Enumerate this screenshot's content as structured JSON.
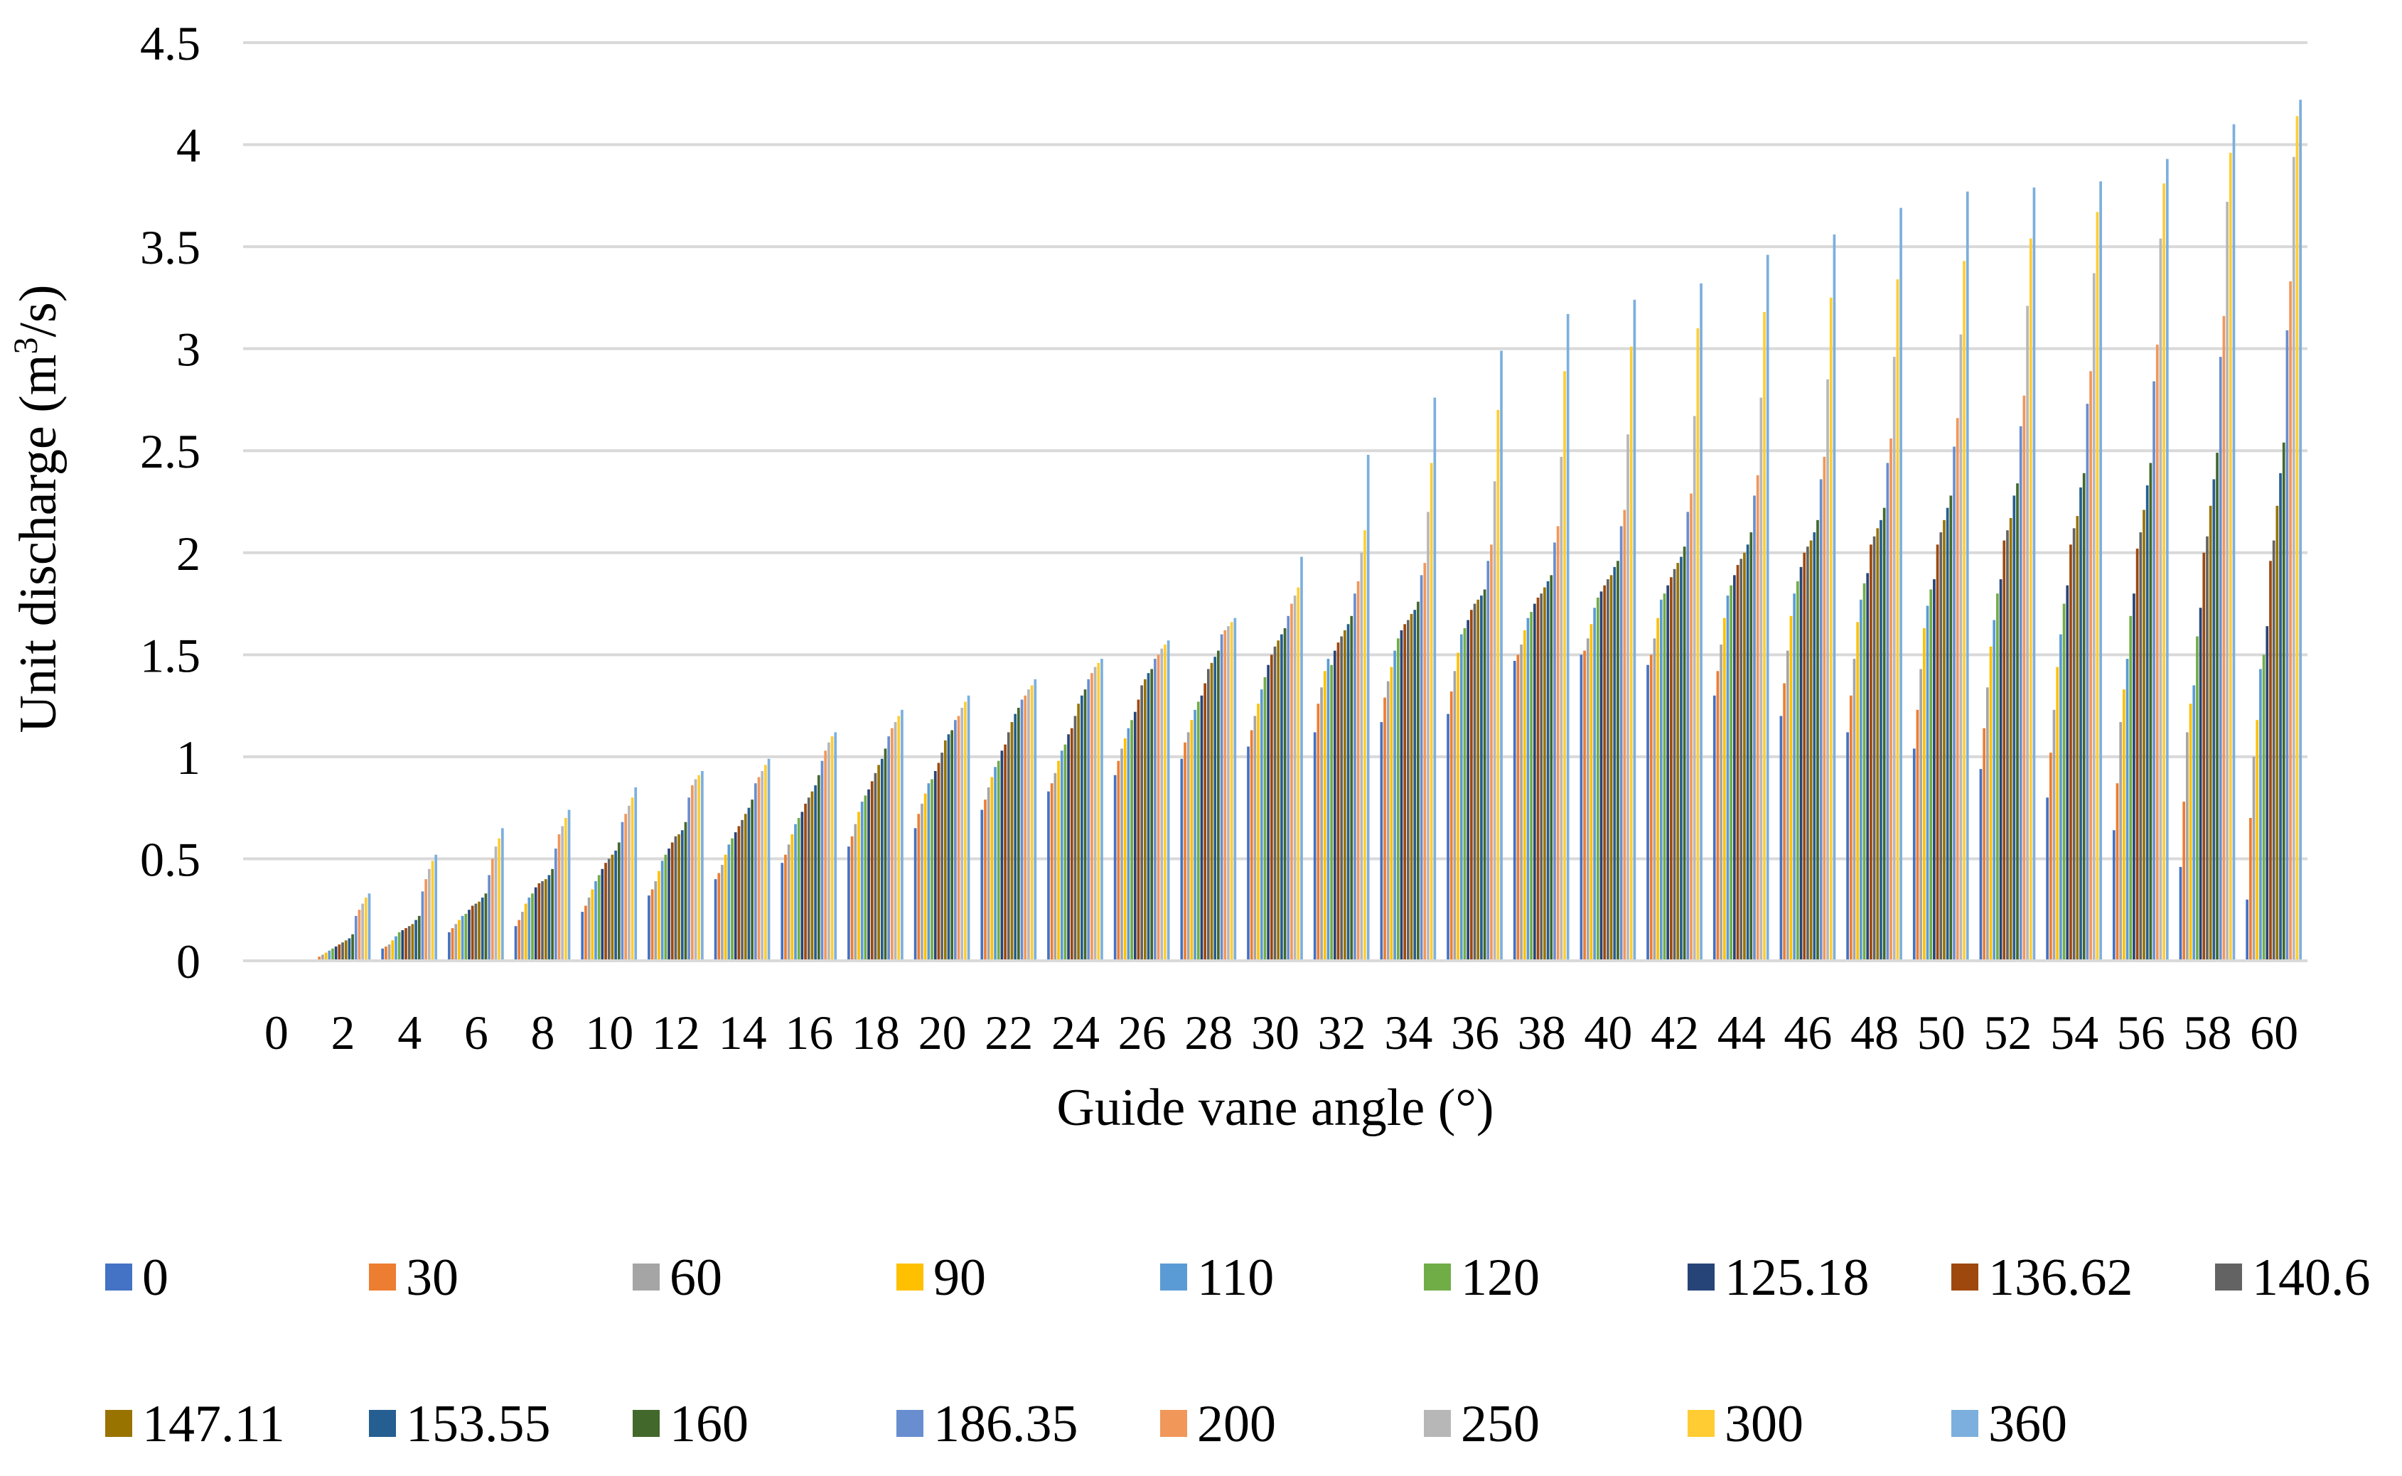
{
  "chart_data": {
    "type": "bar",
    "title": "",
    "xlabel": "Guide vane angle (°)",
    "ylabel_main": "Unit discharge (m",
    "ylabel_sup": "3",
    "ylabel_tail": "/s)",
    "ylim": [
      0,
      4.5
    ],
    "yticks": [
      0,
      0.5,
      1,
      1.5,
      2,
      2.5,
      3,
      3.5,
      4,
      4.5
    ],
    "ytick_labels": [
      "0",
      "0.5",
      "1",
      "1.5",
      "2",
      "2.5",
      "3",
      "3.5",
      "4",
      "4.5"
    ],
    "grid": true,
    "legend_position": "bottom",
    "categories": [
      0,
      2,
      4,
      6,
      8,
      10,
      12,
      14,
      16,
      18,
      20,
      22,
      24,
      26,
      28,
      30,
      32,
      34,
      36,
      38,
      40,
      42,
      44,
      46,
      48,
      50,
      52,
      54,
      56,
      58,
      60
    ],
    "series": [
      {
        "name": "0",
        "color": "#4472C4",
        "values": [
          0,
          0,
          0.06,
          0.14,
          0.17,
          0.24,
          0.32,
          0.4,
          0.48,
          0.56,
          0.65,
          0.74,
          0.83,
          0.91,
          0.99,
          1.05,
          1.12,
          1.17,
          1.21,
          1.47,
          1.5,
          1.45,
          1.3,
          1.2,
          1.12,
          1.04,
          0.94,
          0.8,
          0.64,
          0.46,
          0.3
        ]
      },
      {
        "name": "30",
        "color": "#ED7D31",
        "values": [
          0,
          0.02,
          0.07,
          0.16,
          0.2,
          0.27,
          0.35,
          0.43,
          0.52,
          0.61,
          0.72,
          0.79,
          0.87,
          0.98,
          1.07,
          1.13,
          1.26,
          1.29,
          1.32,
          1.5,
          1.52,
          1.5,
          1.42,
          1.36,
          1.3,
          1.23,
          1.14,
          1.02,
          0.87,
          0.78,
          0.7
        ]
      },
      {
        "name": "60",
        "color": "#A5A5A5",
        "values": [
          0,
          0.03,
          0.08,
          0.18,
          0.24,
          0.31,
          0.39,
          0.47,
          0.57,
          0.67,
          0.77,
          0.85,
          0.92,
          1.04,
          1.12,
          1.2,
          1.34,
          1.37,
          1.42,
          1.55,
          1.58,
          1.58,
          1.55,
          1.52,
          1.48,
          1.43,
          1.34,
          1.23,
          1.17,
          1.12,
          1.0
        ]
      },
      {
        "name": "90",
        "color": "#FFC000",
        "values": [
          0,
          0.04,
          0.1,
          0.2,
          0.28,
          0.35,
          0.44,
          0.52,
          0.62,
          0.73,
          0.82,
          0.9,
          0.98,
          1.09,
          1.18,
          1.26,
          1.42,
          1.44,
          1.51,
          1.62,
          1.65,
          1.68,
          1.68,
          1.69,
          1.66,
          1.63,
          1.54,
          1.44,
          1.33,
          1.26,
          1.18
        ]
      },
      {
        "name": "110",
        "color": "#5B9BD5",
        "values": [
          0,
          0.05,
          0.12,
          0.22,
          0.31,
          0.39,
          0.49,
          0.57,
          0.67,
          0.78,
          0.87,
          0.95,
          1.03,
          1.14,
          1.23,
          1.33,
          1.48,
          1.52,
          1.6,
          1.68,
          1.73,
          1.77,
          1.79,
          1.8,
          1.77,
          1.74,
          1.67,
          1.6,
          1.48,
          1.35,
          1.43
        ]
      },
      {
        "name": "120",
        "color": "#70AD47",
        "values": [
          0,
          0.06,
          0.14,
          0.23,
          0.33,
          0.42,
          0.52,
          0.6,
          0.7,
          0.81,
          0.89,
          0.98,
          1.06,
          1.18,
          1.27,
          1.39,
          1.45,
          1.58,
          1.63,
          1.71,
          1.78,
          1.8,
          1.84,
          1.86,
          1.85,
          1.82,
          1.8,
          1.75,
          1.69,
          1.59,
          1.5
        ]
      },
      {
        "name": "125.18",
        "color": "#264478",
        "values": [
          0,
          0.07,
          0.15,
          0.25,
          0.36,
          0.45,
          0.55,
          0.63,
          0.73,
          0.84,
          0.93,
          1.03,
          1.11,
          1.22,
          1.3,
          1.45,
          1.52,
          1.62,
          1.67,
          1.75,
          1.81,
          1.84,
          1.89,
          1.93,
          1.9,
          1.87,
          1.87,
          1.84,
          1.8,
          1.73,
          1.64
        ]
      },
      {
        "name": "136.62",
        "color": "#9E480E",
        "values": [
          0,
          0.08,
          0.16,
          0.27,
          0.38,
          0.48,
          0.58,
          0.66,
          0.77,
          0.88,
          0.97,
          1.06,
          1.14,
          1.28,
          1.36,
          1.5,
          1.56,
          1.65,
          1.72,
          1.78,
          1.84,
          1.88,
          1.94,
          2.0,
          2.04,
          2.04,
          2.06,
          2.04,
          2.02,
          2.0,
          1.96
        ]
      },
      {
        "name": "140.6",
        "color": "#636363",
        "values": [
          0,
          0.09,
          0.17,
          0.28,
          0.39,
          0.5,
          0.61,
          0.69,
          0.8,
          0.92,
          1.02,
          1.12,
          1.2,
          1.35,
          1.43,
          1.54,
          1.59,
          1.67,
          1.75,
          1.8,
          1.87,
          1.92,
          1.97,
          2.03,
          2.08,
          2.1,
          2.11,
          2.12,
          2.1,
          2.08,
          2.06
        ]
      },
      {
        "name": "147.11",
        "color": "#997300",
        "values": [
          0,
          0.1,
          0.18,
          0.29,
          0.4,
          0.52,
          0.62,
          0.72,
          0.83,
          0.96,
          1.08,
          1.17,
          1.26,
          1.38,
          1.46,
          1.57,
          1.62,
          1.7,
          1.77,
          1.83,
          1.89,
          1.95,
          2.0,
          2.06,
          2.12,
          2.16,
          2.17,
          2.18,
          2.21,
          2.23,
          2.23
        ]
      },
      {
        "name": "153.55",
        "color": "#255E91",
        "values": [
          0,
          0.11,
          0.2,
          0.31,
          0.42,
          0.54,
          0.64,
          0.75,
          0.86,
          0.99,
          1.11,
          1.21,
          1.3,
          1.41,
          1.49,
          1.6,
          1.65,
          1.72,
          1.79,
          1.86,
          1.93,
          1.98,
          2.04,
          2.1,
          2.16,
          2.22,
          2.28,
          2.32,
          2.33,
          2.36,
          2.39
        ]
      },
      {
        "name": "160",
        "color": "#43682B",
        "values": [
          0,
          0.13,
          0.22,
          0.33,
          0.45,
          0.58,
          0.68,
          0.79,
          0.91,
          1.04,
          1.13,
          1.24,
          1.33,
          1.43,
          1.52,
          1.63,
          1.69,
          1.76,
          1.82,
          1.89,
          1.96,
          2.03,
          2.1,
          2.16,
          2.22,
          2.28,
          2.34,
          2.39,
          2.44,
          2.49,
          2.54
        ]
      },
      {
        "name": "186.35",
        "color": "#698ED0",
        "values": [
          0,
          0.22,
          0.34,
          0.42,
          0.55,
          0.68,
          0.8,
          0.87,
          0.98,
          1.1,
          1.18,
          1.28,
          1.38,
          1.48,
          1.6,
          1.69,
          1.8,
          1.89,
          1.96,
          2.05,
          2.13,
          2.2,
          2.28,
          2.36,
          2.44,
          2.52,
          2.62,
          2.73,
          2.84,
          2.96,
          3.09
        ]
      },
      {
        "name": "200",
        "color": "#F1975A",
        "values": [
          0,
          0.25,
          0.4,
          0.5,
          0.62,
          0.72,
          0.86,
          0.9,
          1.03,
          1.14,
          1.2,
          1.3,
          1.41,
          1.5,
          1.62,
          1.75,
          1.86,
          1.95,
          2.04,
          2.13,
          2.21,
          2.29,
          2.38,
          2.47,
          2.56,
          2.66,
          2.77,
          2.89,
          3.02,
          3.16,
          3.33
        ]
      },
      {
        "name": "250",
        "color": "#B7B7B7",
        "values": [
          0,
          0.28,
          0.45,
          0.56,
          0.66,
          0.76,
          0.89,
          0.93,
          1.07,
          1.17,
          1.24,
          1.33,
          1.44,
          1.53,
          1.64,
          1.79,
          2.0,
          2.2,
          2.35,
          2.47,
          2.58,
          2.67,
          2.76,
          2.85,
          2.96,
          3.07,
          3.21,
          3.37,
          3.54,
          3.72,
          3.94
        ]
      },
      {
        "name": "300",
        "color": "#FFCD33",
        "values": [
          0,
          0.31,
          0.49,
          0.6,
          0.7,
          0.8,
          0.91,
          0.96,
          1.1,
          1.2,
          1.27,
          1.35,
          1.46,
          1.55,
          1.66,
          1.83,
          2.11,
          2.44,
          2.7,
          2.89,
          3.01,
          3.1,
          3.18,
          3.25,
          3.34,
          3.43,
          3.54,
          3.67,
          3.81,
          3.96,
          4.14
        ]
      },
      {
        "name": "360",
        "color": "#7CAFDD",
        "values": [
          0,
          0.33,
          0.52,
          0.65,
          0.74,
          0.85,
          0.93,
          0.99,
          1.12,
          1.23,
          1.3,
          1.38,
          1.48,
          1.57,
          1.68,
          1.98,
          2.48,
          2.76,
          2.99,
          3.17,
          3.24,
          3.32,
          3.46,
          3.56,
          3.69,
          3.77,
          3.79,
          3.82,
          3.93,
          4.1,
          4.22
        ]
      }
    ]
  }
}
